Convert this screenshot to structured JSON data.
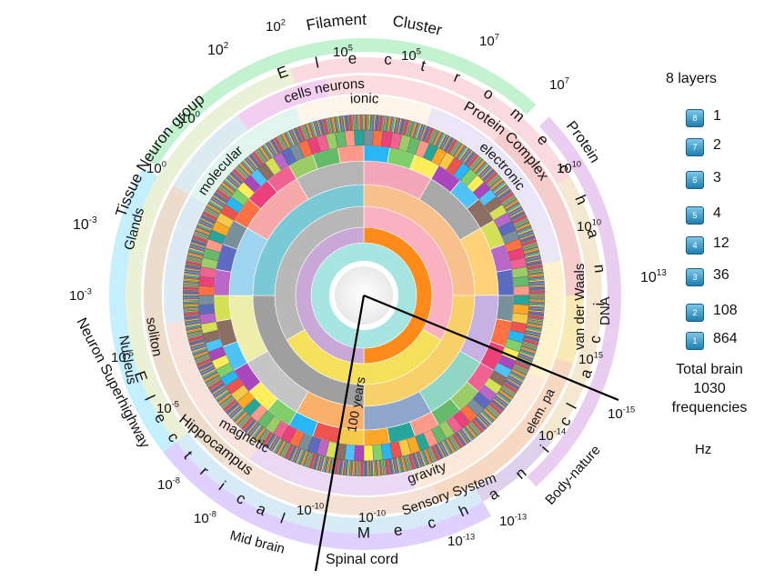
{
  "legend": {
    "title": "8 layers",
    "rows": [
      {
        "badge": "8",
        "value": "1"
      },
      {
        "badge": "7",
        "value": "2"
      },
      {
        "badge": "6",
        "value": "3"
      },
      {
        "badge": "5",
        "value": "4"
      },
      {
        "badge": "4",
        "value": "12"
      },
      {
        "badge": "3",
        "value": "36"
      },
      {
        "badge": "2",
        "value": "108"
      },
      {
        "badge": "1",
        "value": "864"
      }
    ],
    "total_line1": "Total brain",
    "total_line2": "1030",
    "total_line3": "frequencies",
    "unit": "Hz"
  },
  "layers": {
    "segment_counts": [
      1,
      2,
      3,
      4,
      12,
      36,
      108,
      864
    ]
  },
  "center_label": "100 years",
  "outer_arcs": {
    "electromechanical_letters": [
      "E",
      "l",
      "e",
      "c",
      "t",
      "r",
      "o",
      "m",
      "e",
      "c",
      "h",
      "a",
      "n",
      "i",
      "c",
      "a",
      "l"
    ],
    "electrical_letters": [
      "E",
      "l",
      "e",
      "c",
      "t",
      "r",
      "i",
      "c",
      "a",
      "l"
    ],
    "mechanical_letters": [
      "M",
      "e",
      "c",
      "h",
      "a",
      "n",
      "i",
      "c"
    ]
  },
  "labels": {
    "filament": "Filament",
    "cluster": "Cluster",
    "tissue_neuron_group": "Tissue Neuron group",
    "cells_neurons": "cells neurons",
    "ionic": "ionic",
    "protein_complex": "Protein Complex",
    "protein": "Protein",
    "electronic": "electronic",
    "molecular": "molecular",
    "glands": "Glands",
    "nucleus": "Nucleus",
    "soliton": "soliton",
    "neuron_superhighway": "Neuron Superhighway",
    "van_der_waals": "van der Waals",
    "dna": "DNA",
    "hippocampus": "Hippocampus",
    "magnetic": "magnetic",
    "gravity": "gravity",
    "sensory_system": "Sensory  System",
    "elem_pa": "elem. pa",
    "body_nature": "Body-nature",
    "mid_brain": "Mid brain",
    "spinal_cord": "Spinal cord"
  },
  "powers": {
    "p_filament": {
      "base": "10",
      "exp": "2"
    },
    "p_cluster": {
      "base": "10",
      "exp": "7"
    },
    "p_tissue": {
      "base": "10",
      "exp": "2"
    },
    "p_cells": {
      "base": "10",
      "exp": "5"
    },
    "p_ionic_right": {
      "base": "10",
      "exp": "5"
    },
    "p_protein": {
      "base": "10",
      "exp": "7"
    },
    "p_molecular": {
      "base": "10",
      "exp": "0"
    },
    "p_glands": {
      "base": "10",
      "exp": "0"
    },
    "p_electronic": {
      "base": "10",
      "exp": "10"
    },
    "p_vdw": {
      "base": "10",
      "exp": "10"
    },
    "p_left_outer": {
      "base": "10",
      "exp": "-3"
    },
    "p_left_mid": {
      "base": "10",
      "exp": "-3"
    },
    "p_dna": {
      "base": "10",
      "exp": "13"
    },
    "p_nucleus": {
      "base": "10",
      "exp": "-5"
    },
    "p_soliton": {
      "base": "10",
      "exp": "-5"
    },
    "p_dna_low": {
      "base": "10",
      "exp": "15"
    },
    "p_right_low": {
      "base": "10",
      "exp": "-15"
    },
    "p_elem": {
      "base": "10",
      "exp": "-14"
    },
    "p_hippo": {
      "base": "10",
      "exp": "-8"
    },
    "p_mid_brain": {
      "base": "10",
      "exp": "-8"
    },
    "p_magnetic": {
      "base": "10",
      "exp": "-10"
    },
    "p_gravity": {
      "base": "10",
      "exp": "-10"
    },
    "p_body": {
      "base": "10",
      "exp": "-13"
    },
    "p_spinal": {
      "base": "10",
      "exp": "-13"
    }
  }
}
